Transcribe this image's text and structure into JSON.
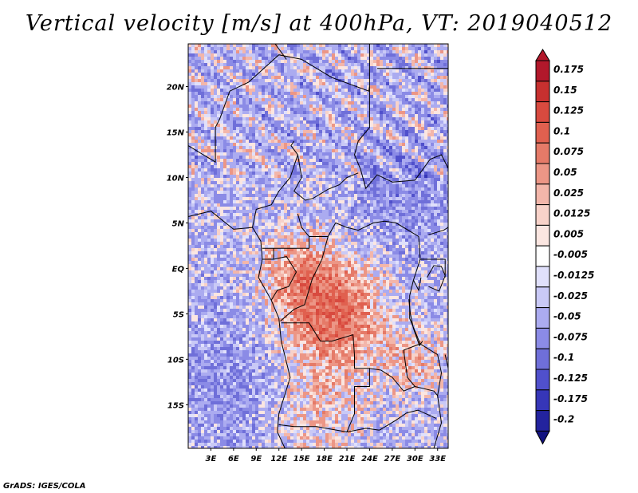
{
  "title": "Vertical velocity [m/s] at 400hPa, VT: 2019040512",
  "credit": "GrADS: IGES/COLA",
  "map": {
    "lat_labels": [
      "20N",
      "15N",
      "10N",
      "5N",
      "EQ",
      "5S",
      "10S",
      "15S"
    ],
    "lon_labels": [
      "3E",
      "6E",
      "9E",
      "12E",
      "15E",
      "18E",
      "21E",
      "24E",
      "27E",
      "30E",
      "33E"
    ]
  },
  "colorbar": {
    "labels": [
      "0.175",
      "0.15",
      "0.125",
      "0.1",
      "0.075",
      "0.05",
      "0.025",
      "0.0125",
      "0.005",
      "-0.005",
      "-0.0125",
      "-0.025",
      "-0.05",
      "-0.075",
      "-0.1",
      "-0.125",
      "-0.175",
      "-0.2"
    ],
    "colors": [
      "#b2182b",
      "#c7302f",
      "#d84a3f",
      "#e0604f",
      "#e57a68",
      "#ec9686",
      "#f3b6aa",
      "#f8d2c9",
      "#fbe6e1",
      "#ffffff",
      "#e0e0fb",
      "#c9c9f6",
      "#ababf0",
      "#8b8be6",
      "#6f6fd9",
      "#5050cc",
      "#3636b8",
      "#23239e",
      "#121280"
    ]
  },
  "chart_data": {
    "type": "heatmap",
    "title": "Vertical velocity [m/s] at 400hPa, VT: 2019040512",
    "variable": "Vertical velocity",
    "units": "m/s",
    "level": "400hPa",
    "valid_time": "2019040512",
    "x_ticks": [
      "3E",
      "6E",
      "9E",
      "12E",
      "15E",
      "18E",
      "21E",
      "24E",
      "27E",
      "30E",
      "33E"
    ],
    "y_ticks": [
      "20N",
      "15N",
      "10N",
      "5N",
      "EQ",
      "5S",
      "10S",
      "15S"
    ],
    "colorbar_levels": [
      0.175,
      0.15,
      0.125,
      0.1,
      0.075,
      0.05,
      0.025,
      0.0125,
      0.005,
      -0.005,
      -0.0125,
      -0.025,
      -0.05,
      -0.075,
      -0.1,
      -0.125,
      -0.175,
      -0.2
    ]
  }
}
